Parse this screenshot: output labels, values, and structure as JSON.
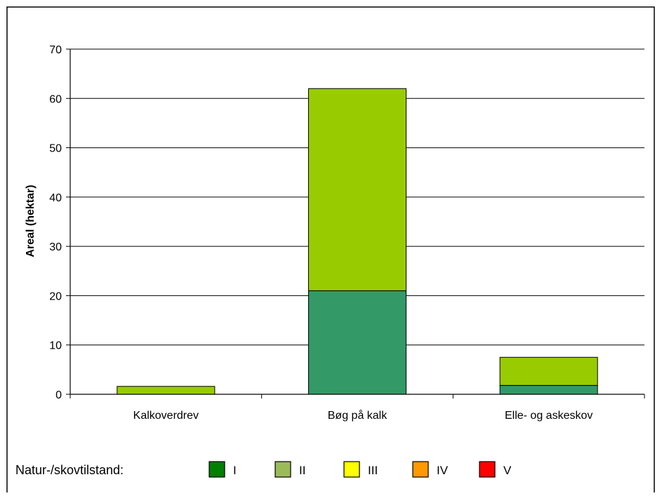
{
  "chart_data": {
    "type": "bar",
    "stacked": true,
    "categories": [
      "Kalkoverdrev",
      "Bøg på kalk",
      "Elle- og askeskov"
    ],
    "series": [
      {
        "name": "I",
        "values": [
          0,
          0,
          0
        ]
      },
      {
        "name": "II",
        "values": [
          0,
          21,
          1.8
        ]
      },
      {
        "name": "III",
        "values": [
          1.6,
          41,
          5.7
        ]
      },
      {
        "name": "IV",
        "values": [
          0,
          0,
          0
        ]
      },
      {
        "name": "V",
        "values": [
          0,
          0,
          0
        ]
      }
    ],
    "title": "",
    "xlabel": "",
    "ylabel": "Areal (hektar)",
    "ylim": [
      0,
      70
    ],
    "yticks": [
      0,
      10,
      20,
      30,
      40,
      50,
      60,
      70
    ],
    "grid": true,
    "legend_title": "Natur-/skovtilstand:",
    "legend_placement": "bottom",
    "legend_colors": [
      "#008000",
      "#9BBB59",
      "#FFFF00",
      "#FF9900",
      "#FF0000"
    ],
    "bar_colors": {
      "II": "#339966",
      "III": "#99CC00"
    }
  }
}
